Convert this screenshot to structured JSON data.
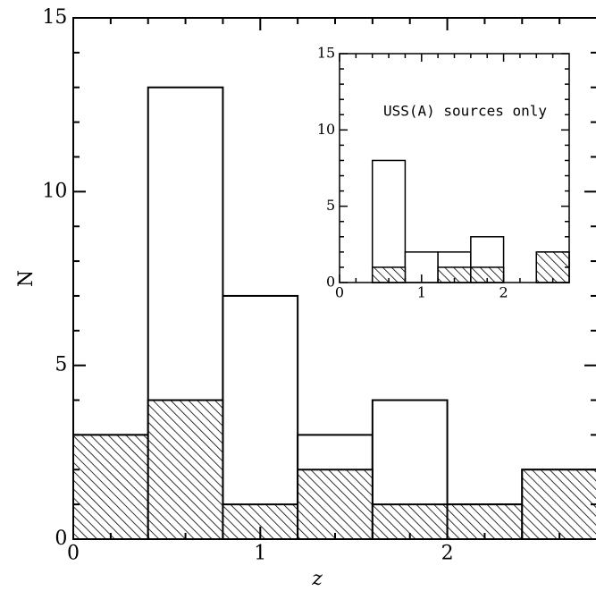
{
  "chart_data": [
    {
      "type": "histogram",
      "xlabel": "z",
      "ylabel": "N",
      "bins": [
        0,
        0.4,
        0.8,
        1.2,
        1.6,
        2.0,
        2.4,
        2.8
      ],
      "series": [
        {
          "values": [
            3,
            13,
            7,
            3,
            4,
            1,
            2
          ],
          "color": "#ffffff"
        },
        {
          "values": [
            3,
            4,
            1,
            2,
            1,
            1,
            2
          ],
          "color": "#000000",
          "hatch": true
        }
      ],
      "xlim": [
        0,
        2.8
      ],
      "ylim": [
        0,
        15
      ],
      "xticks": [
        0,
        1,
        2
      ],
      "yticks": [
        0,
        5,
        10,
        15
      ],
      "xminorticks": [
        0.2,
        0.4,
        0.6,
        0.8,
        1.2,
        1.4,
        1.6,
        1.8,
        2.2,
        2.4,
        2.6
      ],
      "yminorticks": [
        1,
        2,
        3,
        4,
        6,
        7,
        8,
        9,
        11,
        12,
        13,
        14
      ]
    },
    {
      "type": "histogram",
      "annotation": "USS(A) sources only",
      "bins": [
        0,
        0.4,
        0.8,
        1.2,
        1.6,
        2.0,
        2.4,
        2.8
      ],
      "series": [
        {
          "values": [
            0,
            8,
            2,
            2,
            3,
            0,
            2
          ],
          "color": "#ffffff"
        },
        {
          "values": [
            0,
            1,
            0,
            1,
            1,
            0,
            2
          ],
          "color": "#000000",
          "hatch": true
        }
      ],
      "xlim": [
        0,
        2.8
      ],
      "ylim": [
        0,
        15
      ],
      "xticks": [
        0,
        1,
        2
      ],
      "yticks": [
        0,
        5,
        10,
        15
      ],
      "xminorticks": [
        0.2,
        0.4,
        0.6,
        0.8,
        1.2,
        1.4,
        1.6,
        1.8,
        2.2,
        2.4,
        2.6
      ],
      "yminorticks": [
        1,
        2,
        3,
        4,
        6,
        7,
        8,
        9,
        11,
        12,
        13,
        14
      ]
    }
  ]
}
